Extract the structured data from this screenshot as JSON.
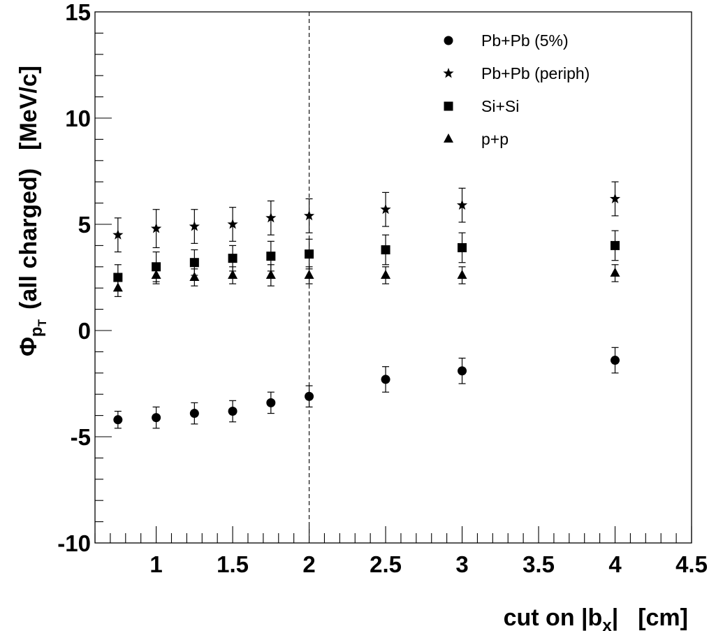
{
  "chart_data": {
    "type": "scatter",
    "xlabel": {
      "prefix": "cut on |b",
      "sub": "x",
      "suffix": "|",
      "unit": "[cm]"
    },
    "ylabel": {
      "symbol": "Φ",
      "sub": "p",
      "subsub": "T",
      "text": "(all charged)",
      "unit": "[MeV/c]"
    },
    "xlim": [
      0.6,
      4.5
    ],
    "ylim": [
      -10,
      15
    ],
    "xticks": [
      1,
      1.5,
      2,
      2.5,
      3,
      3.5,
      4,
      4.5
    ],
    "xtick_labels": [
      "1",
      "1.5",
      "2",
      "2.5",
      "3",
      "3.5",
      "4",
      "4.5"
    ],
    "yticks": [
      -10,
      -5,
      0,
      5,
      10,
      15
    ],
    "ytick_labels": [
      "-10",
      "-5",
      "0",
      "5",
      "10",
      "15"
    ],
    "vertical_line": {
      "x": 2,
      "style": "dashed"
    },
    "legend_position": "top-right",
    "series": [
      {
        "name": "Pb+Pb (5%)",
        "marker": "circle",
        "x": [
          0.75,
          1,
          1.25,
          1.5,
          1.75,
          2,
          2.5,
          3,
          4
        ],
        "y": [
          -4.2,
          -4.1,
          -3.9,
          -3.8,
          -3.4,
          -3.1,
          -2.3,
          -1.9,
          -1.4
        ],
        "err": [
          0.4,
          0.5,
          0.5,
          0.5,
          0.5,
          0.5,
          0.6,
          0.6,
          0.6
        ]
      },
      {
        "name": "Pb+Pb (periph)",
        "marker": "star",
        "x": [
          0.75,
          1,
          1.25,
          1.5,
          1.75,
          2,
          2.5,
          3,
          4
        ],
        "y": [
          4.5,
          4.8,
          4.9,
          5.0,
          5.3,
          5.4,
          5.7,
          5.9,
          6.2
        ],
        "err": [
          0.8,
          0.9,
          0.8,
          0.8,
          0.8,
          0.8,
          0.8,
          0.8,
          0.8
        ]
      },
      {
        "name": "Si+Si",
        "marker": "square",
        "x": [
          0.75,
          1,
          1.25,
          1.5,
          1.75,
          2,
          2.5,
          3,
          4
        ],
        "y": [
          2.5,
          3.0,
          3.2,
          3.4,
          3.5,
          3.6,
          3.8,
          3.9,
          4.0
        ],
        "err": [
          0.6,
          0.7,
          0.6,
          0.6,
          0.7,
          0.7,
          0.7,
          0.7,
          0.7
        ]
      },
      {
        "name": "p+p",
        "marker": "triangle",
        "x": [
          0.75,
          1,
          1.25,
          1.5,
          1.75,
          2,
          2.5,
          3,
          4
        ],
        "y": [
          2.0,
          2.6,
          2.5,
          2.6,
          2.6,
          2.6,
          2.6,
          2.6,
          2.7
        ],
        "err": [
          0.4,
          0.4,
          0.4,
          0.4,
          0.5,
          0.4,
          0.4,
          0.4,
          0.4
        ]
      }
    ]
  }
}
